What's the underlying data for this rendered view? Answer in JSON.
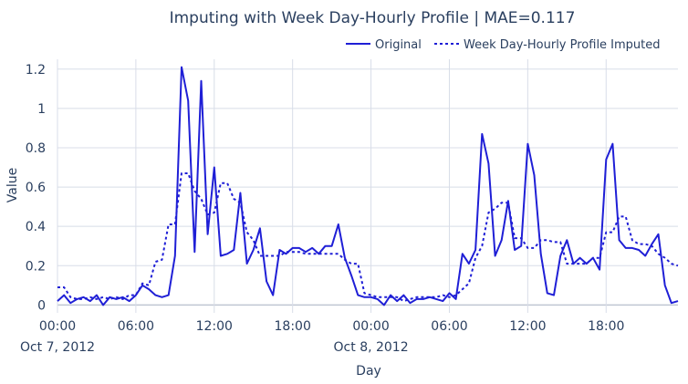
{
  "chart_data": {
    "type": "line",
    "title": "Imputing with Week Day-Hourly Profile | MAE=0.117",
    "xlabel": "Day",
    "ylabel": "Value",
    "x_start": "2012-10-07 00:00",
    "x_step_hours": 0.5,
    "x_ticks": [
      {
        "hour": 0,
        "label": "00:00",
        "sublabel": "Oct 7, 2012"
      },
      {
        "hour": 6,
        "label": "06:00",
        "sublabel": ""
      },
      {
        "hour": 12,
        "label": "12:00",
        "sublabel": ""
      },
      {
        "hour": 18,
        "label": "18:00",
        "sublabel": ""
      },
      {
        "hour": 24,
        "label": "00:00",
        "sublabel": "Oct 8, 2012"
      },
      {
        "hour": 30,
        "label": "06:00",
        "sublabel": ""
      },
      {
        "hour": 36,
        "label": "12:00",
        "sublabel": ""
      },
      {
        "hour": 42,
        "label": "18:00",
        "sublabel": ""
      }
    ],
    "y_ticks": [
      0,
      0.2,
      0.4,
      0.6,
      0.8,
      1,
      1.2
    ],
    "y_tick_labels": [
      "0",
      "0.2",
      "0.4",
      "0.6",
      "0.8",
      "1",
      "1.2"
    ],
    "xlim_hours": [
      0,
      47.5
    ],
    "ylim": [
      -0.04,
      1.25
    ],
    "grid": true,
    "legend_position": "top-right",
    "series": [
      {
        "name": "Original",
        "color": "#1f1fd6",
        "dash": "solid",
        "values": [
          0.02,
          0.05,
          0.01,
          0.03,
          0.04,
          0.02,
          0.05,
          0.0,
          0.04,
          0.03,
          0.04,
          0.02,
          0.05,
          0.1,
          0.08,
          0.05,
          0.04,
          0.05,
          0.25,
          1.21,
          1.04,
          0.27,
          1.14,
          0.36,
          0.7,
          0.25,
          0.26,
          0.28,
          0.57,
          0.21,
          0.28,
          0.39,
          0.12,
          0.05,
          0.28,
          0.26,
          0.29,
          0.29,
          0.27,
          0.29,
          0.26,
          0.3,
          0.3,
          0.41,
          0.24,
          0.15,
          0.05,
          0.04,
          0.04,
          0.03,
          0.0,
          0.05,
          0.02,
          0.05,
          0.01,
          0.03,
          0.03,
          0.04,
          0.03,
          0.02,
          0.06,
          0.03,
          0.26,
          0.21,
          0.28,
          0.87,
          0.72,
          0.25,
          0.33,
          0.53,
          0.28,
          0.3,
          0.82,
          0.66,
          0.26,
          0.06,
          0.05,
          0.25,
          0.33,
          0.21,
          0.24,
          0.21,
          0.24,
          0.18,
          0.74,
          0.82,
          0.33,
          0.29,
          0.29,
          0.28,
          0.25,
          0.31,
          0.36,
          0.1,
          0.01,
          0.02
        ]
      },
      {
        "name": "Week Day-Hourly Profile Imputed",
        "color": "#1f1fd6",
        "dash": "dotted",
        "values": [
          0.09,
          0.09,
          0.04,
          0.03,
          0.03,
          0.04,
          0.03,
          0.04,
          0.03,
          0.04,
          0.03,
          0.05,
          0.05,
          0.11,
          0.1,
          0.22,
          0.23,
          0.41,
          0.41,
          0.67,
          0.67,
          0.58,
          0.54,
          0.46,
          0.47,
          0.62,
          0.62,
          0.54,
          0.52,
          0.37,
          0.33,
          0.25,
          0.25,
          0.25,
          0.25,
          0.27,
          0.27,
          0.27,
          0.26,
          0.26,
          0.26,
          0.26,
          0.26,
          0.26,
          0.23,
          0.21,
          0.21,
          0.06,
          0.05,
          0.04,
          0.04,
          0.04,
          0.04,
          0.02,
          0.03,
          0.04,
          0.04,
          0.04,
          0.04,
          0.05,
          0.04,
          0.05,
          0.08,
          0.11,
          0.24,
          0.3,
          0.47,
          0.49,
          0.52,
          0.52,
          0.34,
          0.34,
          0.29,
          0.29,
          0.33,
          0.33,
          0.32,
          0.32,
          0.21,
          0.21,
          0.21,
          0.21,
          0.24,
          0.24,
          0.37,
          0.37,
          0.45,
          0.45,
          0.33,
          0.31,
          0.31,
          0.3,
          0.26,
          0.24,
          0.21,
          0.2
        ]
      }
    ]
  }
}
